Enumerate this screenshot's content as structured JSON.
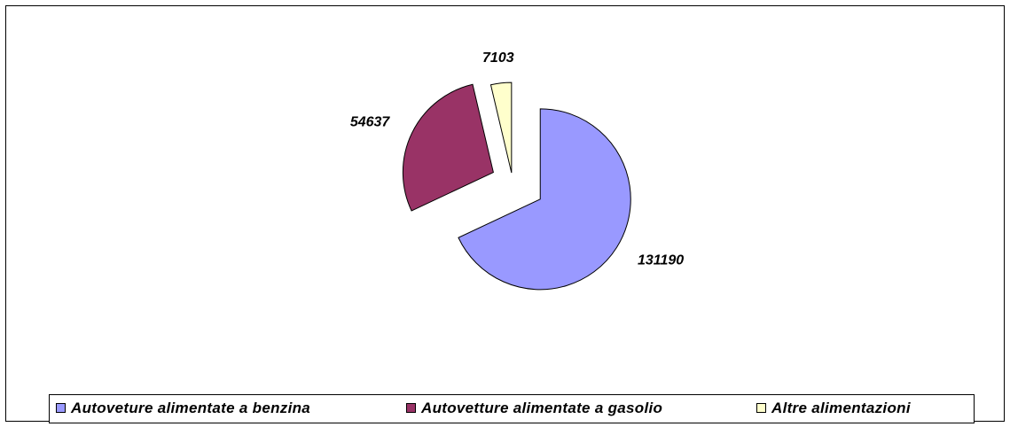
{
  "chart_data": {
    "type": "pie",
    "categories": [
      "Autoveture alimentate a benzina",
      "Autovetture alimentate a gasolio",
      "Altre alimentazioni"
    ],
    "values": [
      131190,
      54637,
      7103
    ],
    "colors": [
      "#9999ff",
      "#993366",
      "#ffffcc"
    ],
    "legend": "bottom"
  }
}
